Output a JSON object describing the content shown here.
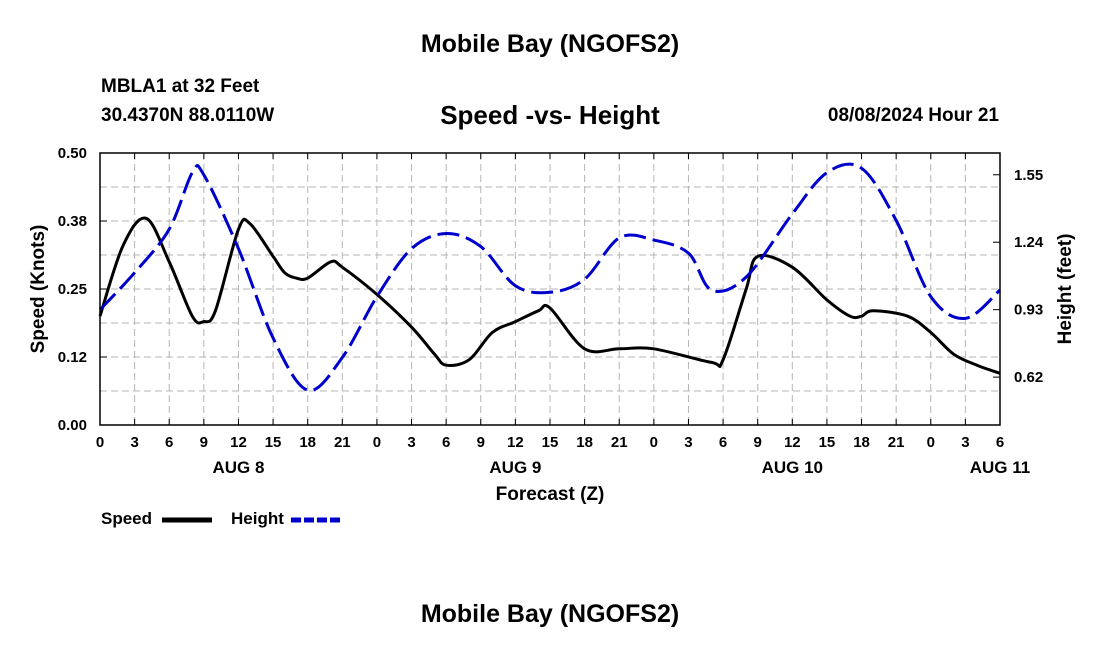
{
  "header": {
    "title": "Mobile Bay (NGOFS2)",
    "station": "MBLA1 at 32 Feet",
    "coordinates": "30.4370N  88.0110W",
    "subtitle": "Speed -vs- Height",
    "datetime": "08/08/2024 Hour 21"
  },
  "footer": {
    "title": "Mobile Bay (NGOFS2)"
  },
  "chart_data": {
    "type": "line",
    "xlabel": "Forecast (Z)",
    "ylabel_left": "Speed (Knots)",
    "ylabel_right": "Height (feet)",
    "x_tick_labels": [
      "0",
      "3",
      "6",
      "9",
      "12",
      "15",
      "18",
      "21",
      "0",
      "3",
      "6",
      "9",
      "12",
      "15",
      "18",
      "21",
      "0",
      "3",
      "6",
      "9",
      "12",
      "15",
      "18",
      "21",
      "0",
      "3",
      "6"
    ],
    "date_labels": [
      {
        "label": "AUG 8",
        "hour": 12
      },
      {
        "label": "AUG 9",
        "hour": 36
      },
      {
        "label": "AUG 10",
        "hour": 60
      },
      {
        "label": "AUG 11",
        "hour": 78
      }
    ],
    "xlim": [
      0,
      78
    ],
    "ylim_left": [
      0.0,
      0.5
    ],
    "ylim_right": [
      0.4,
      1.65
    ],
    "yticks_left": [
      "0.00",
      "0.12",
      "0.25",
      "0.38",
      "0.50"
    ],
    "yticks_right": [
      "0.62",
      "0.93",
      "1.24",
      "1.55"
    ],
    "grid": true,
    "legend_position": "bottom-left",
    "series": [
      {
        "name": "Speed",
        "color": "#000000",
        "style": "solid",
        "axis": "left",
        "x": [
          0,
          2,
          4,
          6,
          8,
          9,
          10,
          12,
          13,
          15,
          16,
          17,
          18,
          20,
          21,
          24,
          27,
          29,
          30,
          32,
          34,
          36,
          38,
          39,
          42,
          45,
          48,
          53,
          54,
          56,
          57,
          60,
          63,
          65,
          66,
          67,
          70,
          72,
          74,
          76,
          78
        ],
        "values": [
          0.2,
          0.33,
          0.38,
          0.3,
          0.2,
          0.19,
          0.21,
          0.36,
          0.37,
          0.31,
          0.28,
          0.27,
          0.27,
          0.3,
          0.29,
          0.24,
          0.18,
          0.13,
          0.11,
          0.12,
          0.17,
          0.19,
          0.21,
          0.215,
          0.14,
          0.14,
          0.14,
          0.115,
          0.12,
          0.25,
          0.31,
          0.29,
          0.23,
          0.2,
          0.2,
          0.21,
          0.2,
          0.17,
          0.13,
          0.11,
          0.095
        ]
      },
      {
        "name": "Height",
        "color": "#0000cc",
        "style": "dashed",
        "axis": "right",
        "x": [
          0,
          3,
          6,
          8,
          9,
          12,
          15,
          18,
          21,
          24,
          27,
          30,
          33,
          36,
          39,
          42,
          45,
          48,
          51,
          53,
          56,
          60,
          63,
          66,
          69,
          72,
          75,
          78
        ],
        "values": [
          0.93,
          1.1,
          1.3,
          1.56,
          1.55,
          1.21,
          0.8,
          0.56,
          0.71,
          0.99,
          1.21,
          1.28,
          1.22,
          1.04,
          1.01,
          1.07,
          1.26,
          1.25,
          1.19,
          1.02,
          1.08,
          1.37,
          1.56,
          1.58,
          1.34,
          0.99,
          0.89,
          1.02
        ]
      }
    ]
  }
}
